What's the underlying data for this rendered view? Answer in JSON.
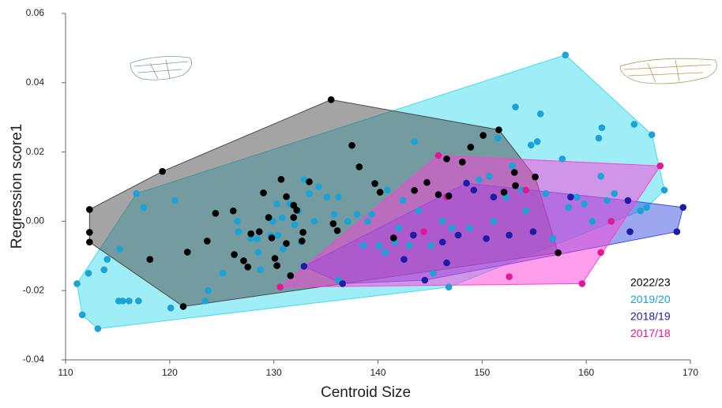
{
  "chart_data": {
    "type": "scatter",
    "x_label": "Centroid Size",
    "y_label": "Regression score1",
    "xlim": [
      110,
      170
    ],
    "xticks": [
      110,
      120,
      130,
      140,
      150,
      160,
      170
    ],
    "ylim": [
      -0.04,
      0.06
    ],
    "yticks": [
      -0.04,
      -0.02,
      {
        "value": 0,
        "label": "0.00"
      },
      0.02,
      0.04,
      0.06
    ],
    "legend": "lower right",
    "series": [
      {
        "name": "2022/23",
        "color": "#000000",
        "hull_color": "#4a4a4a",
        "x": [
          112.3,
          112.3,
          112.3,
          119.3,
          118.1,
          121.7,
          121.3,
          124.4,
          123.6,
          126.1,
          126.2,
          127.1,
          127.5,
          127.8,
          128.6,
          129.0,
          129.5,
          129.8,
          130.1,
          130.3,
          130.7,
          131.2,
          131.9,
          132.2,
          131.9,
          131.2,
          131.6,
          132.8,
          132.7,
          133.4,
          135.5,
          135.7,
          136.1,
          137.5,
          138.2,
          139.7,
          140.2,
          141.5,
          143.5,
          144.7,
          145.8,
          146.6,
          146.8,
          148.1,
          148.9,
          150.1,
          151.6,
          152.1,
          153.1,
          153.2,
          155.1,
          157.3
        ],
        "values": [
          0.0034,
          -0.0032,
          -0.006,
          0.0144,
          -0.011,
          -0.0089,
          -0.0246,
          0.0023,
          -0.0057,
          0.003,
          -0.0096,
          -0.0114,
          -0.0132,
          -0.0036,
          -0.003,
          0.0082,
          0.0011,
          -0.0048,
          -0.0107,
          -0.0128,
          0.0121,
          0.0071,
          0.0046,
          0.0032,
          0.0011,
          -0.0064,
          -0.0157,
          -0.0032,
          -0.0057,
          0.0114,
          0.0351,
          -0.0007,
          -0.0027,
          0.0219,
          0.0157,
          0.0109,
          0.0084,
          -0.0048,
          0.0089,
          0.0112,
          0.0077,
          0.018,
          0.0073,
          0.0171,
          0.0214,
          0.0248,
          0.0264,
          0.0084,
          0.0141,
          0.0103,
          0.0128,
          -0.0091
        ]
      },
      {
        "name": "2019/20",
        "color": "#1aa3d6",
        "hull_color": "#3fdcf0",
        "x": [
          111.1,
          111.6,
          113.1,
          112.2,
          113.7,
          114.0,
          115.1,
          115.5,
          116.1,
          117.0,
          115.2,
          116.8,
          117.5,
          120.5,
          120.1,
          123.7,
          123.4,
          125.1,
          126.5,
          126.6,
          127.8,
          128.4,
          128.5,
          128.7,
          129.7,
          129.9,
          130.3,
          130.4,
          130.8,
          130.9,
          131.5,
          132.0,
          132.4,
          132.6,
          132.9,
          133.4,
          133.9,
          134.3,
          135.1,
          135.8,
          136.2,
          136.2,
          137.1,
          138.0,
          138.6,
          139.0,
          139.4,
          140.1,
          140.7,
          140.9,
          141.6,
          142.0,
          142.4,
          143.0,
          143.5,
          143.9,
          145.1,
          145.3,
          146.2,
          146.8,
          147.1,
          148.5,
          148.8,
          149.7,
          150.7,
          151.1,
          151.5,
          152.3,
          152.9,
          153.2,
          153.8,
          154.2,
          154.7,
          155.3,
          155.6,
          156.1,
          156.8,
          157.7,
          158.0,
          158.3,
          159.1,
          159.8,
          160.6,
          161.4,
          161.5,
          162.0,
          162.4,
          162.7,
          164.6,
          165.2,
          165.8,
          166.3,
          167.5,
          161.2
        ],
        "values": [
          -0.018,
          -0.027,
          -0.031,
          -0.015,
          -0.014,
          -0.011,
          -0.023,
          -0.023,
          -0.023,
          -0.023,
          -0.008,
          0.008,
          0.004,
          0.006,
          -0.025,
          -0.02,
          -0.023,
          -0.015,
          0,
          -0.003,
          -0.005,
          -0.005,
          -0.009,
          -0.014,
          -0.004,
          0,
          0.005,
          -0.004,
          0.001,
          -0.008,
          0.005,
          -0.001,
          0.003,
          -0.006,
          0.012,
          0.008,
          0,
          0.01,
          0.007,
          0.002,
          0.007,
          -0.017,
          0,
          0.002,
          -0.007,
          0,
          0.002,
          -0.007,
          -0.009,
          0.009,
          -0.006,
          -0.002,
          0.006,
          -0.007,
          0.023,
          0.003,
          -0.007,
          -0.015,
          0,
          -0.019,
          -0.002,
          0.011,
          -0.002,
          0.012,
          0.013,
          0,
          0.024,
          0.007,
          0.016,
          0.033,
          0.009,
          0.003,
          0.022,
          0.023,
          0.031,
          0.008,
          -0.005,
          0.018,
          0.048,
          0.004,
          0.007,
          0.005,
          0,
          0.013,
          0.027,
          0.006,
          0,
          0.008,
          0.028,
          0.003,
          0.004,
          0.025,
          0.009,
          0.024
        ]
      },
      {
        "name": "2018/19",
        "color": "#1c1ca6",
        "hull_color": "#3b4fe0",
        "x": [
          132.9,
          136.6,
          143.4,
          144.5,
          146.2,
          147.7,
          148.5,
          150.4,
          152.6,
          154.9,
          158.5,
          164.0,
          164.2,
          168.7,
          169.3,
          142.5,
          146.6,
          149.2,
          151.1
        ],
        "values": [
          -0.013,
          -0.018,
          -0.004,
          -0.017,
          -0.006,
          -0.004,
          0.011,
          -0.005,
          -0.004,
          -0.003,
          0.007,
          0.006,
          -0.003,
          -0.003,
          0.004,
          -0.011,
          -0.012,
          0.009,
          0.007
        ]
      },
      {
        "name": "2017/18",
        "color": "#e0189a",
        "hull_color": "#ff3fd8",
        "x": [
          130.6,
          145.8,
          154.2,
          152.6,
          159.6,
          161.4,
          162.4,
          167.1,
          144.4,
          146.6
        ],
        "values": [
          -0.019,
          0.019,
          0.009,
          -0.016,
          -0.018,
          -0.009,
          0,
          0.016,
          -0.003,
          0.007
        ]
      }
    ]
  }
}
